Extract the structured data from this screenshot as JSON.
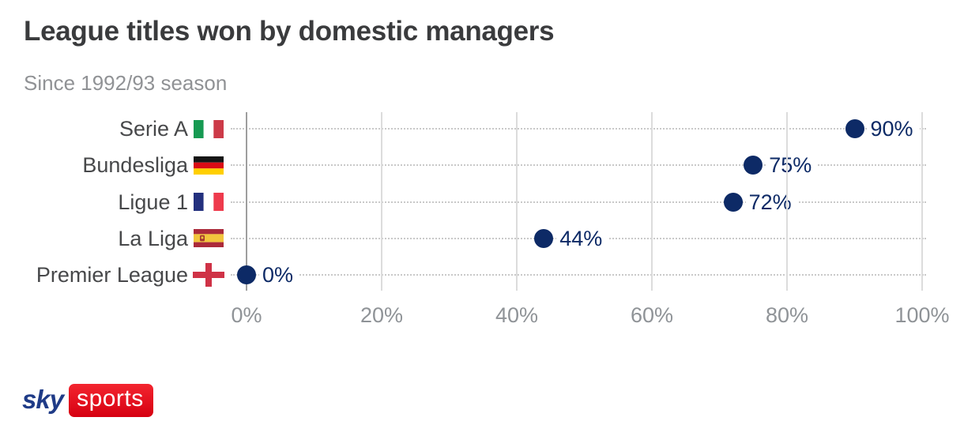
{
  "header": {
    "title": "League titles won by domestic managers",
    "subtitle": "Since 1992/93 season"
  },
  "chart_data": {
    "type": "scatter",
    "title": "League titles won by domestic managers",
    "subtitle": "Since 1992/93 season",
    "categories": [
      "Serie A",
      "Bundesliga",
      "Ligue 1",
      "La Liga",
      "Premier League"
    ],
    "values": [
      90,
      75,
      72,
      44,
      0
    ],
    "value_labels": [
      "90%",
      "75%",
      "72%",
      "44%",
      "0%"
    ],
    "flags": [
      "italy-flag-icon",
      "germany-flag-icon",
      "france-flag-icon",
      "spain-flag-icon",
      "england-flag-icon"
    ],
    "x_tick_values": [
      0,
      20,
      40,
      60,
      80,
      100
    ],
    "x_tick_labels": [
      "0%",
      "20%",
      "40%",
      "60%",
      "80%",
      "100%"
    ],
    "xlim": [
      0,
      100
    ],
    "grid": true,
    "legend": false,
    "dot_color": "#0d2a66",
    "value_label_color": "#0d2a66"
  },
  "branding": {
    "sky": "sky",
    "sports": "sports",
    "sky_navy": "#1f3b87",
    "sports_red": "#e30613"
  }
}
